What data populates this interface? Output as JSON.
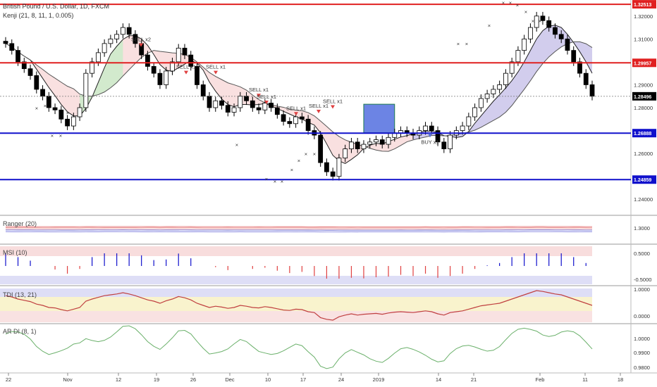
{
  "header": {
    "symbol_line": "British Pound / U.S. Dollar, 1D, FXCM",
    "indicator_line": "Kenji (21, 8, 11, 1, 0.005)"
  },
  "panels": {
    "ranger": "Ranger (20)",
    "msi": "MSI (10)",
    "tdi": "TDI (13, 21)",
    "ardi": "AR DI (8, 1)"
  },
  "colors": {
    "up": "#ffffff",
    "down": "#000000",
    "resistance": "#e02020",
    "support": "#1010cc",
    "sell": "#e04040",
    "buy": "#5b6fd6",
    "cloud_red": "#f4c6c6",
    "cloud_blue": "#c8c8f0",
    "cloud_green": "#c8ecc8",
    "box": "#3b5bdb"
  },
  "chart_data": [
    {
      "type": "candlestick",
      "panel": "price",
      "ylim": [
        1.233,
        1.327
      ],
      "y_ticks": [
        "1.32000",
        "1.31000",
        "1.30000",
        "1.29000",
        "1.28000",
        "1.27000",
        "1.26000",
        "1.25000",
        "1.24000"
      ],
      "x_ticks": [
        "22",
        "Nov",
        "12",
        "19",
        "26",
        "Dec",
        "10",
        "17",
        "24",
        "2019",
        "14",
        "21",
        "Feb",
        "11",
        "18"
      ],
      "current_price": "1.28496",
      "levels": [
        {
          "value": "1.32513",
          "kind": "resistance"
        },
        {
          "value": "1.29957",
          "kind": "resistance"
        },
        {
          "value": "1.26888",
          "kind": "support"
        },
        {
          "value": "1.24859",
          "kind": "support"
        }
      ],
      "signals": [
        {
          "label": "SELL x2",
          "kind": "sell"
        },
        {
          "label": "SELL x1",
          "kind": "sell"
        },
        {
          "label": "SELL x1",
          "kind": "sell"
        },
        {
          "label": "SELL x1",
          "kind": "sell"
        },
        {
          "label": "SELL x1",
          "kind": "sell"
        },
        {
          "label": "SELL x1",
          "kind": "sell"
        },
        {
          "label": "SELL x1",
          "kind": "sell"
        },
        {
          "label": "SELL x1",
          "kind": "sell"
        },
        {
          "label": "BUY x1",
          "kind": "buy"
        }
      ]
    },
    {
      "type": "line",
      "panel": "Ranger (20)",
      "y_ticks": [
        "1.3000"
      ]
    },
    {
      "type": "bar",
      "panel": "MSI (10)",
      "y_ticks": [
        "0.5000",
        "-0.5000"
      ]
    },
    {
      "type": "line",
      "panel": "TDI (13, 21)",
      "y_ticks": [
        "1.0000",
        "0.0000"
      ]
    },
    {
      "type": "line",
      "panel": "AR DI (8, 1)",
      "y_ticks": [
        "1.0000",
        "0.9900",
        "0.9800"
      ]
    }
  ]
}
